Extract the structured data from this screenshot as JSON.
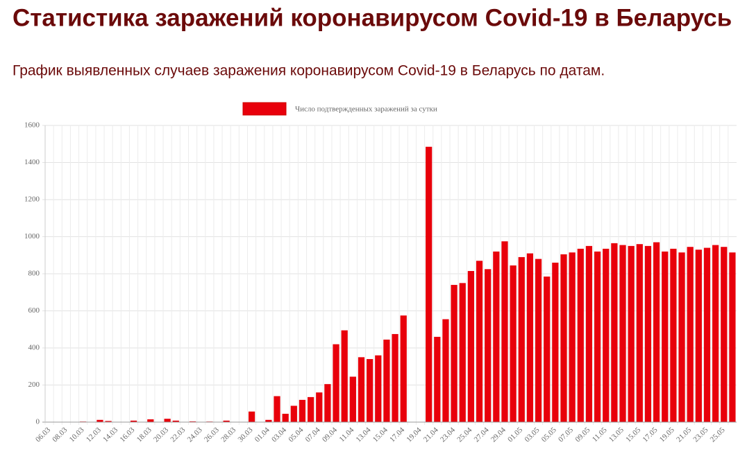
{
  "header": {
    "title": "Статистика заражений коронавирусом Covid-19 в Беларусь",
    "subtitle": "График выявленных случаев заражения коронавирусом Covid-19 в Беларусь по датам."
  },
  "chart_data": {
    "type": "bar",
    "categories": [
      "06.03",
      null,
      "08.03",
      null,
      "10.03",
      null,
      "12.03",
      null,
      "14.03",
      null,
      "16.03",
      null,
      "18.03",
      null,
      "20.03",
      null,
      "22.03",
      null,
      "24.03",
      null,
      "26.03",
      null,
      "28.03",
      null,
      "30.03",
      null,
      "01.04",
      null,
      "03.04",
      null,
      "05.04",
      null,
      "07.04",
      null,
      "09.04",
      null,
      "11.04",
      null,
      "13.04",
      null,
      "15.04",
      null,
      "17.04",
      null,
      "19.04",
      null,
      "21.04",
      null,
      "23.04",
      null,
      "25.04",
      null,
      "27.04",
      null,
      "29.04",
      null,
      "01.05",
      null,
      "03.05",
      null,
      "05.05",
      null,
      "07.05",
      null,
      "09.05",
      null,
      "11.05",
      null,
      "13.05",
      null,
      "15.05",
      null,
      "17.05",
      null,
      "19.05",
      null,
      "21.05",
      null,
      "23.05",
      null,
      "25.05",
      null
    ],
    "series": [
      {
        "name": "Число подтвержденных заражений за сутки",
        "color": "#e8000b",
        "values": [
          0,
          0,
          0,
          0,
          3,
          0,
          12,
          6,
          0,
          0,
          8,
          0,
          15,
          0,
          18,
          8,
          0,
          4,
          0,
          3,
          0,
          8,
          0,
          0,
          57,
          0,
          12,
          140,
          45,
          88,
          120,
          135,
          160,
          205,
          420,
          495,
          245,
          350,
          340,
          360,
          445,
          475,
          575,
          0,
          0,
          1485,
          460,
          555,
          740,
          750,
          815,
          870,
          825,
          920,
          975,
          845,
          890,
          910,
          880,
          785,
          860,
          905,
          915,
          935,
          950,
          920,
          935,
          965,
          955,
          950,
          960,
          950,
          970,
          920,
          935,
          915,
          945,
          930,
          940,
          955,
          945,
          915
        ]
      }
    ],
    "ylim": [
      0,
      1600
    ],
    "yticks": [
      0,
      200,
      400,
      600,
      800,
      1000,
      1200,
      1400,
      1600
    ],
    "grid": true
  }
}
